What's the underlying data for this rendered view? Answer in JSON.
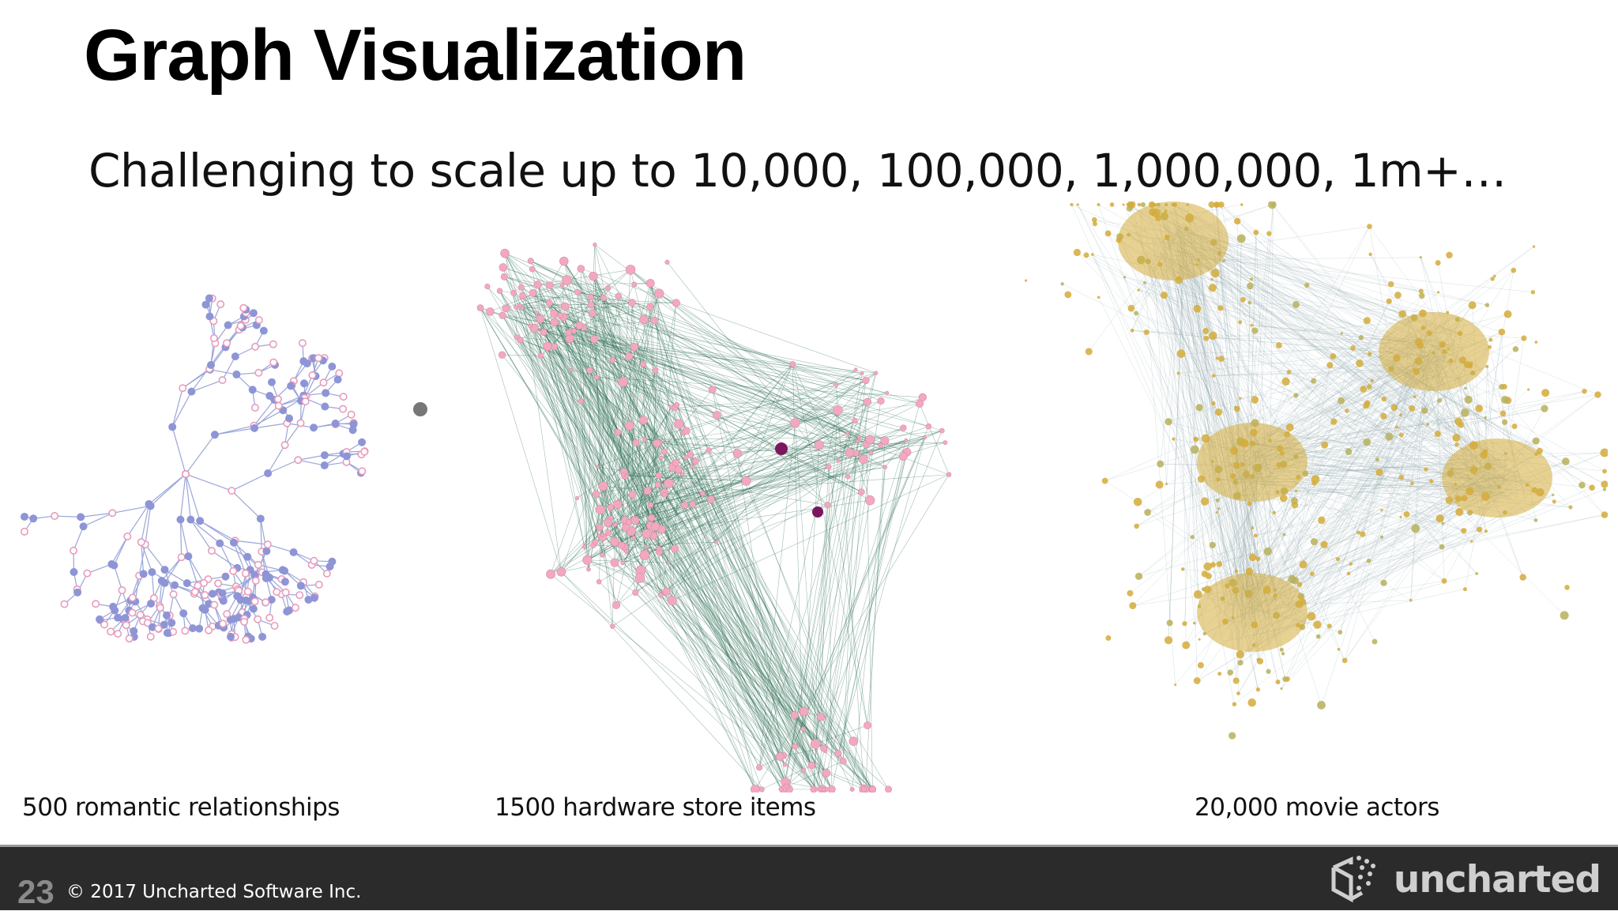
{
  "slide": {
    "title": "Graph Visualization",
    "subtitle": "Challenging to scale up to 10,000,  100,000, 1,000,000, 1m+…"
  },
  "graphs": [
    {
      "caption": "500 romantic relationships",
      "icon": "tree-network-graph",
      "edge_color": "#9aa6d8",
      "node_colors": [
        "#8e95d6",
        "#e89cbb"
      ]
    },
    {
      "caption": "1500 hardware store items",
      "icon": "dense-network-graph",
      "edge_color": "#2e6e55",
      "node_colors": [
        "#f2a9c0",
        "#7a1760"
      ]
    },
    {
      "caption": "20,000 movie actors",
      "icon": "hairball-network-graph",
      "edge_color": "#8ba3a8",
      "node_colors": [
        "#d4ab3a",
        "#b7b05a"
      ]
    }
  ],
  "footer": {
    "slide_number": "23",
    "copyright": "© 2017 Uncharted Software Inc.",
    "logo_text": "uncharted",
    "background": "#2b2b2b"
  }
}
